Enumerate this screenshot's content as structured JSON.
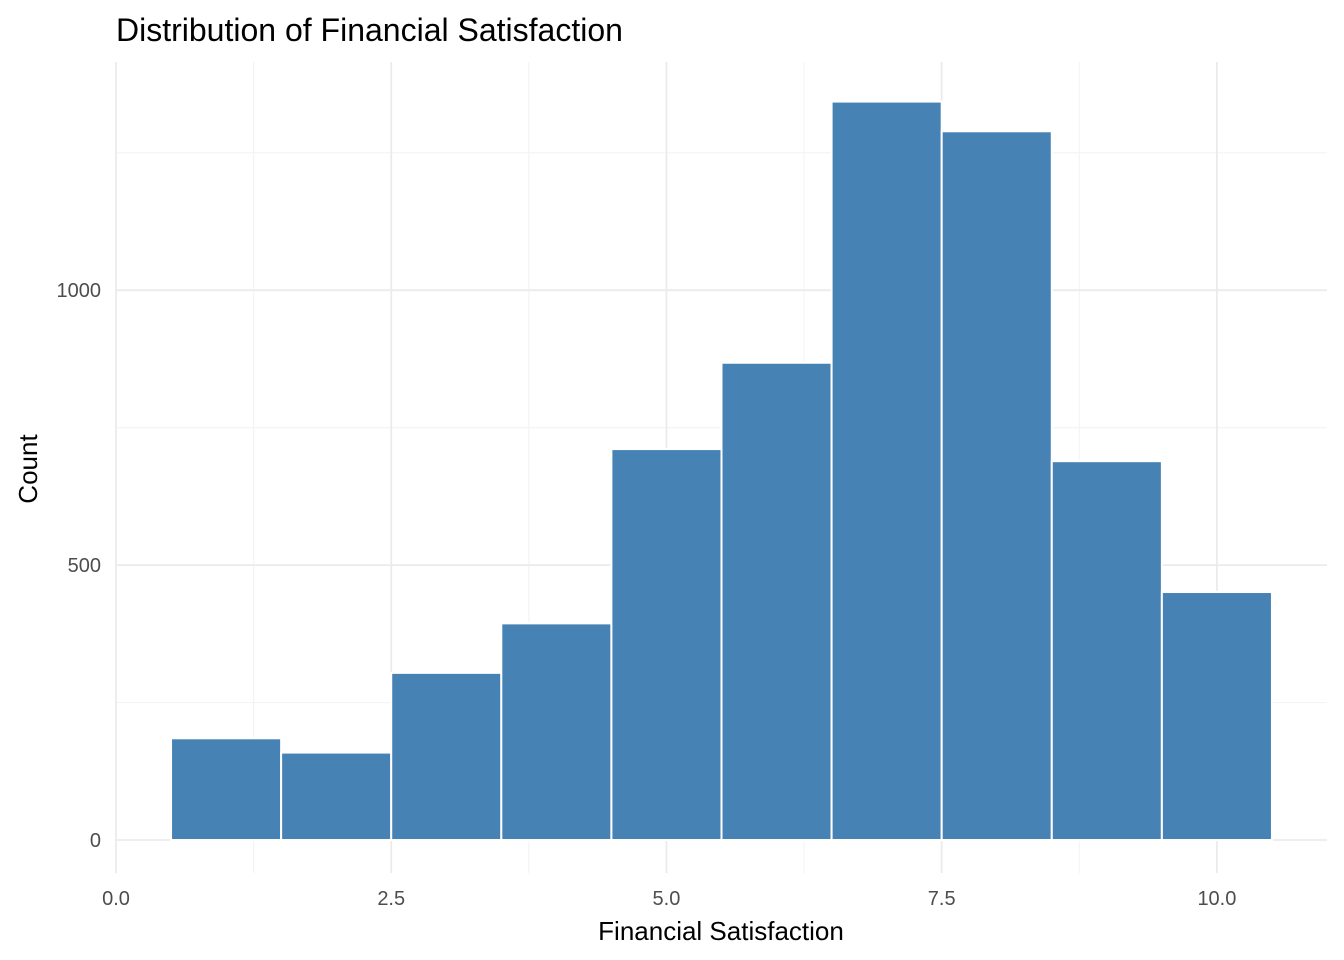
{
  "chart_data": {
    "type": "bar",
    "title": "Distribution of Financial Satisfaction",
    "xlabel": "Financial Satisfaction",
    "ylabel": "Count",
    "bins": [
      {
        "x0": 0.5,
        "x1": 1.5,
        "value": 185
      },
      {
        "x0": 1.5,
        "x1": 2.5,
        "value": 159
      },
      {
        "x0": 2.5,
        "x1": 3.5,
        "value": 304
      },
      {
        "x0": 3.5,
        "x1": 4.5,
        "value": 394
      },
      {
        "x0": 4.5,
        "x1": 5.5,
        "value": 711
      },
      {
        "x0": 5.5,
        "x1": 6.5,
        "value": 868
      },
      {
        "x0": 6.5,
        "x1": 7.5,
        "value": 1343
      },
      {
        "x0": 7.5,
        "x1": 8.5,
        "value": 1289
      },
      {
        "x0": 8.5,
        "x1": 9.5,
        "value": 689
      },
      {
        "x0": 9.5,
        "x1": 10.5,
        "value": 451
      }
    ],
    "x_ticks": [
      {
        "value": 0.0,
        "label": "0.0"
      },
      {
        "value": 2.5,
        "label": "2.5"
      },
      {
        "value": 5.0,
        "label": "5.0"
      },
      {
        "value": 7.5,
        "label": "7.5"
      },
      {
        "value": 10.0,
        "label": "10.0"
      }
    ],
    "y_ticks": [
      {
        "value": 0,
        "label": "0"
      },
      {
        "value": 500,
        "label": "500"
      },
      {
        "value": 1000,
        "label": "1000"
      }
    ],
    "xlim": [
      0,
      11
    ],
    "ylim": [
      -60,
      1415
    ],
    "grid": true,
    "bar_color": "#4682B4",
    "bar_edge_color": "#ffffff",
    "grid_major_color": "#ebebeb",
    "grid_minor_color": "#f4f4f4"
  }
}
